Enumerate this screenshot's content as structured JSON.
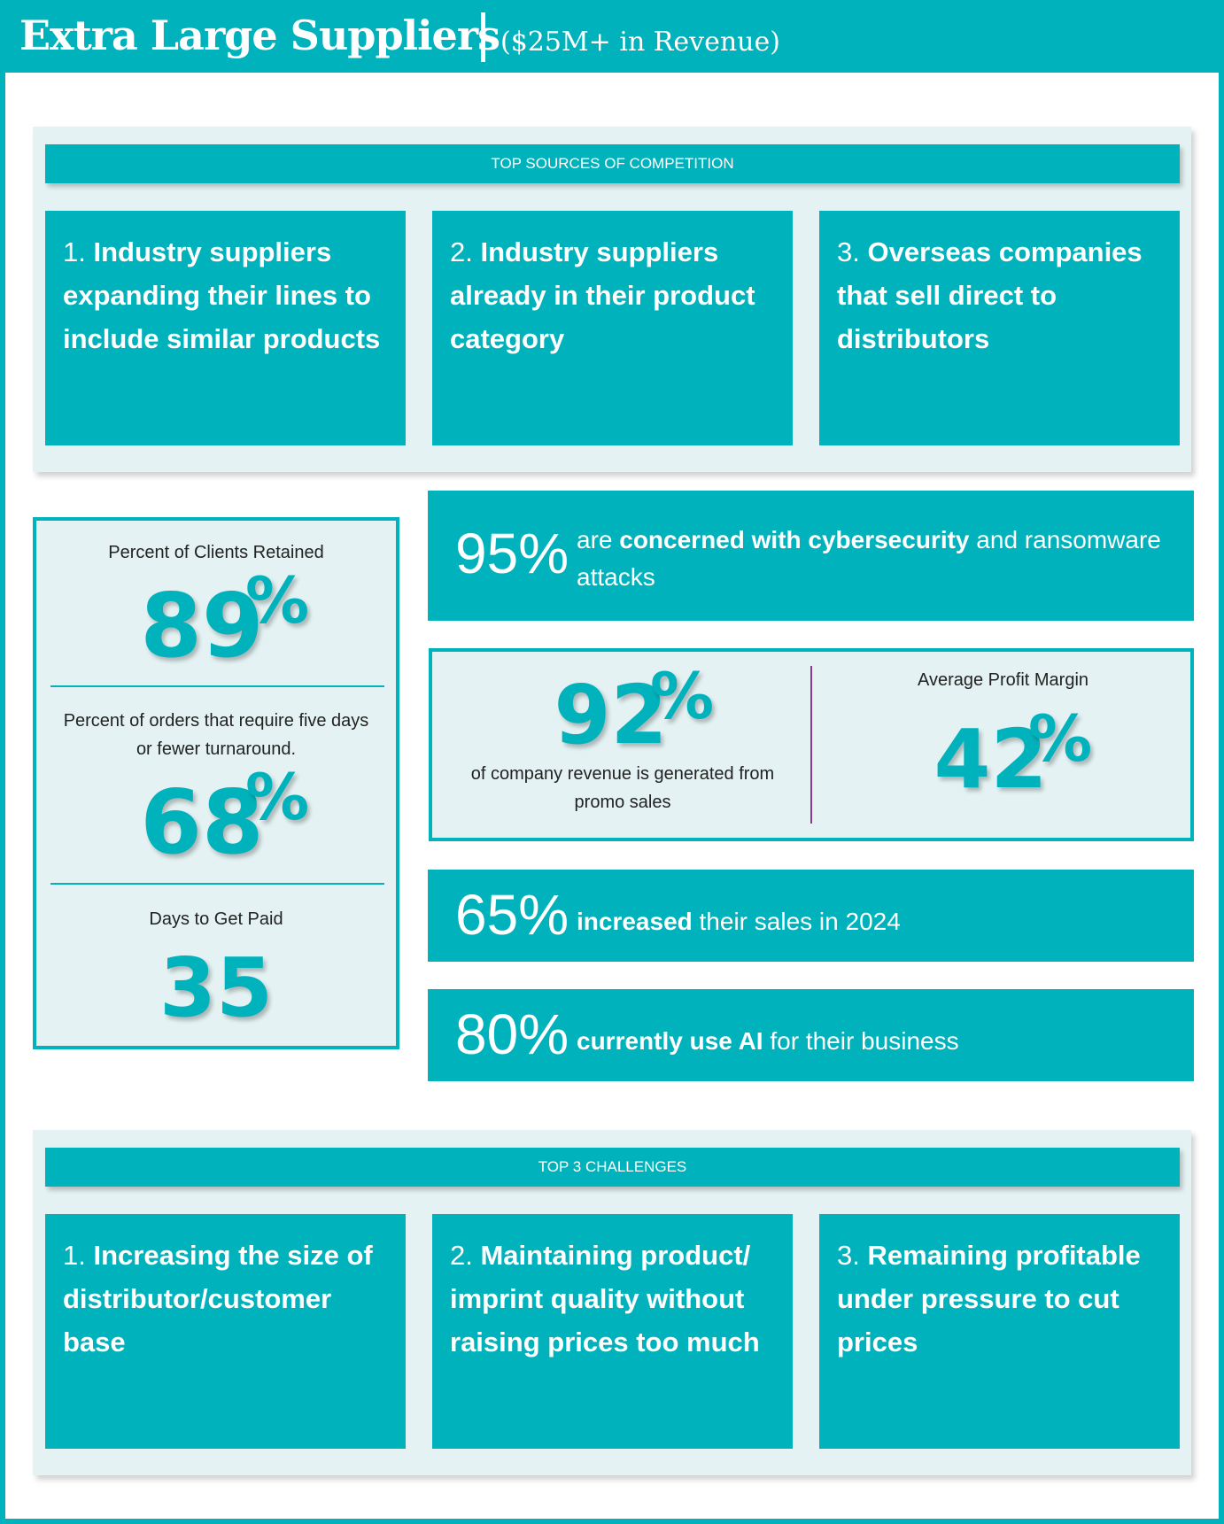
{
  "header": {
    "title": "Extra Large Suppliers",
    "subtitle": "($25M+ in Revenue)"
  },
  "competition": {
    "heading": "TOP SOURCES OF COMPETITION",
    "items": [
      {
        "num": "1.",
        "text": "Industry suppliers expanding their lines to include similar products"
      },
      {
        "num": "2.",
        "text": "Industry suppliers already in their product category"
      },
      {
        "num": "3.",
        "text": "Overseas companies that sell direct to distributors"
      }
    ]
  },
  "left_stats": {
    "retained": {
      "label": "Percent of Clients Retained",
      "value": "89",
      "unit": "%"
    },
    "turnaround": {
      "label": "Percent of orders that require five days or fewer turnaround.",
      "value": "68",
      "unit": "%"
    },
    "paid": {
      "label": "Days to Get Paid",
      "value": "35"
    }
  },
  "cyber": {
    "value": "95%",
    "pre": "are ",
    "bold": "concerned with cybersecurity",
    "post": " and ransomware attacks"
  },
  "promo": {
    "value": "92",
    "unit": "%",
    "label": "of company revenue is generated from promo sales"
  },
  "margin": {
    "label": "Average Profit Margin",
    "value": "42",
    "unit": "%"
  },
  "sales": {
    "value": "65%",
    "bold": "increased",
    "post": " their sales in 2024"
  },
  "ai": {
    "value": "80%",
    "bold": "currently use AI",
    "post": " for their business"
  },
  "challenges": {
    "heading": "TOP 3 CHALLENGES",
    "items": [
      {
        "num": "1.",
        "text": "Increasing the size of distributor/customer base"
      },
      {
        "num": "2.",
        "text": "Maintaining product/ imprint quality without raising prices too much"
      },
      {
        "num": "3.",
        "text": "Remaining profitable under pressure to cut prices"
      }
    ]
  },
  "colors": {
    "teal": "#00b2bb",
    "panel": "#e4f2f3",
    "separator": "#8b3a8f"
  }
}
